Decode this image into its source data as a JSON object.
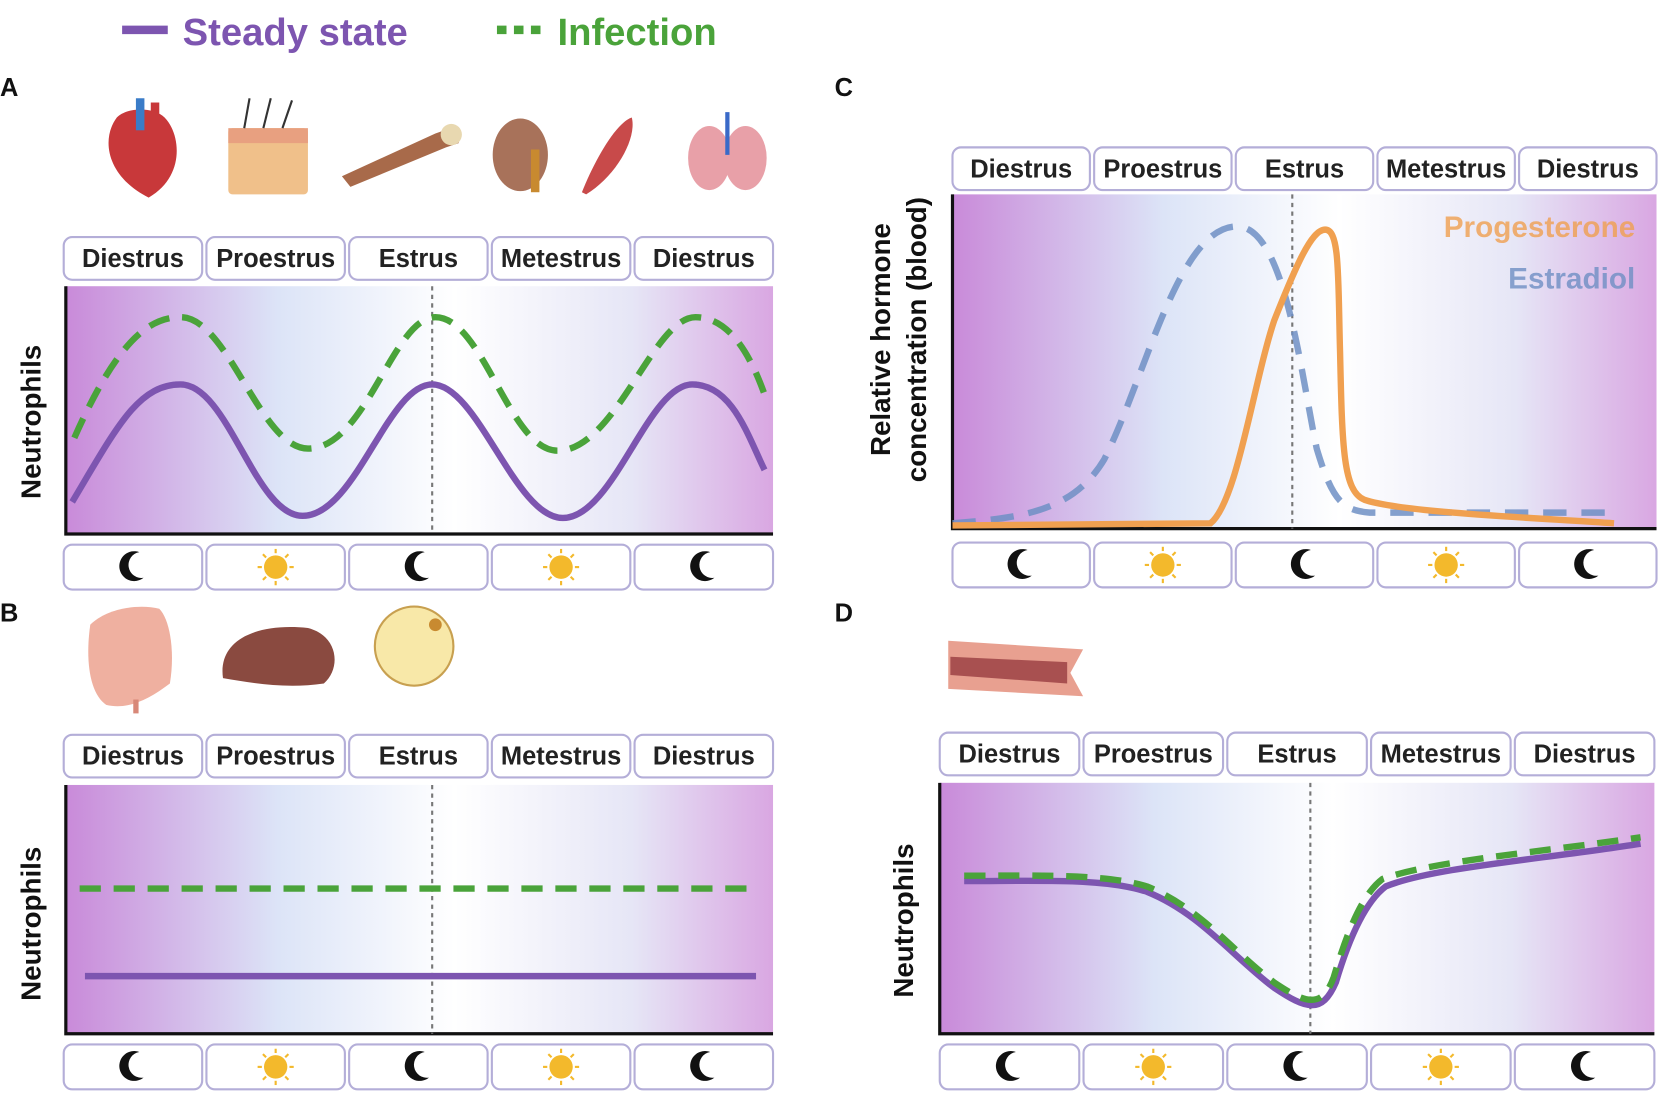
{
  "legend": {
    "steady": "Steady state",
    "infection": "Infection"
  },
  "panels": [
    {
      "letter": "A",
      "phases": [
        "Diestrus",
        "Proestrus",
        "Estrus",
        "Metestrus",
        "Diestrus"
      ],
      "ylabel": "Neutrophils"
    },
    {
      "letter": "B",
      "phases": [
        "Diestrus",
        "Proestrus",
        "Estrus",
        "Metestrus",
        "Diestrus"
      ],
      "ylabel": "Neutrophils"
    },
    {
      "letter": "C",
      "phases": [
        "Diestrus",
        "Proestrus",
        "Estrus",
        "Metestrus",
        "Diestrus"
      ],
      "ylabel": [
        "Relative hormone",
        "concentration (blood)"
      ],
      "series": [
        "Progesterone",
        "Estradiol"
      ]
    },
    {
      "letter": "D",
      "phases": [
        "Diestrus",
        "Proestrus",
        "Estrus",
        "Metestrus",
        "Diestrus"
      ],
      "ylabel": "Neutrophils"
    }
  ]
}
